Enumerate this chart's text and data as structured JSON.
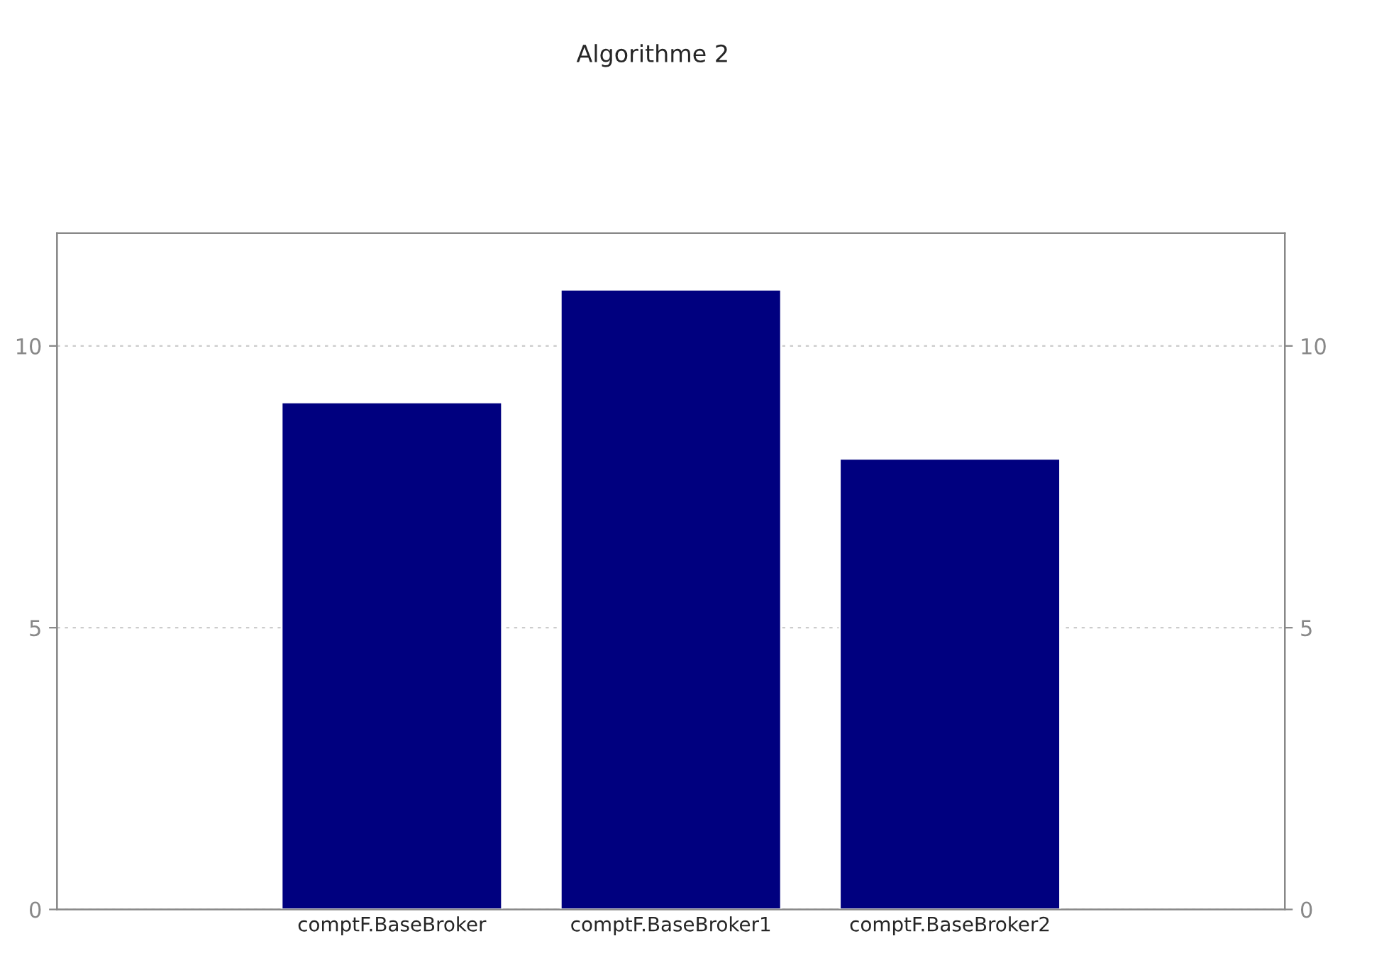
{
  "chart_data": {
    "type": "bar",
    "title": "Algorithme 2",
    "categories": [
      "comptF.BaseBroker",
      "comptF.BaseBroker1",
      "comptF.BaseBroker2"
    ],
    "values": [
      9,
      11,
      8
    ],
    "color": "#00007f",
    "ylim": [
      0,
      12
    ],
    "yticks": [
      0,
      5,
      10
    ],
    "y2lim": [
      0,
      12
    ],
    "y2ticks": [
      0,
      5,
      10
    ],
    "grid": "y"
  }
}
